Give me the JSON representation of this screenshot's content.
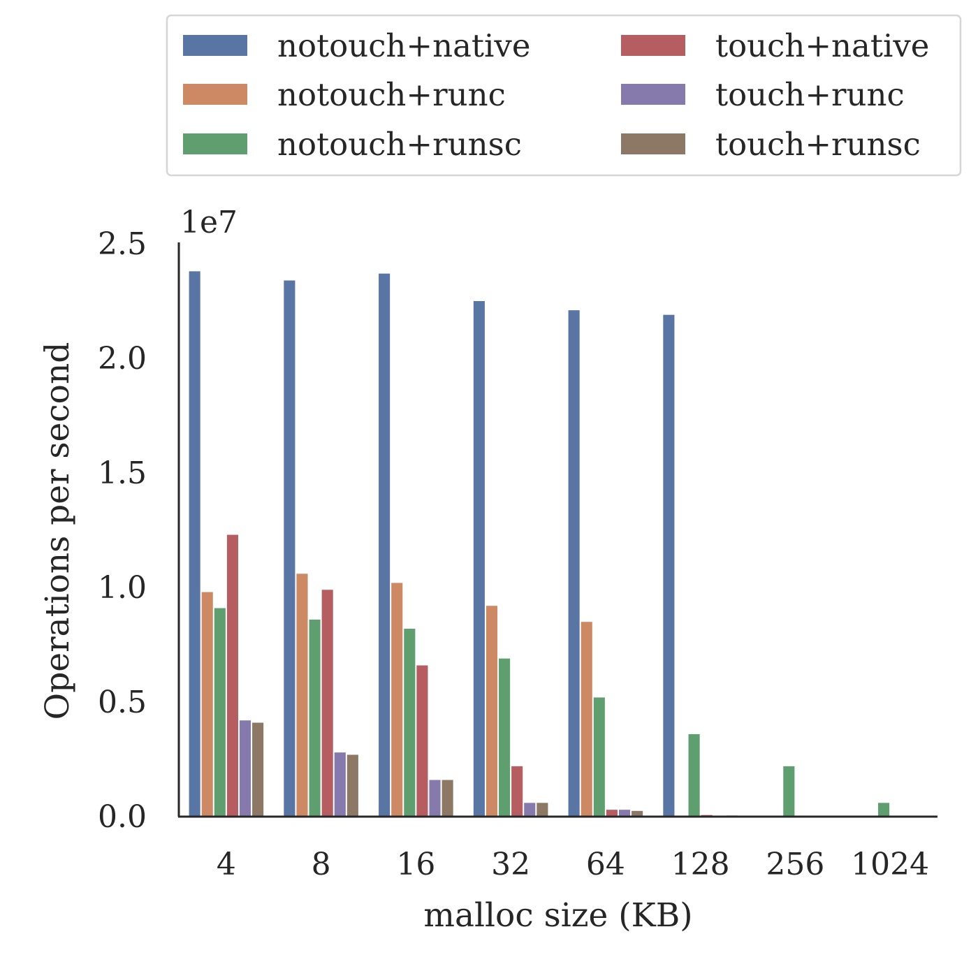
{
  "chart_data": {
    "type": "bar",
    "xlabel": "malloc size (KB)",
    "ylabel": "Operations per second",
    "y_offset_label": "1e7",
    "y_scale": 10000000,
    "ylim": [
      0,
      2.5
    ],
    "yticks": [
      "0.0",
      "0.5",
      "1.0",
      "1.5",
      "2.0",
      "2.5"
    ],
    "grid": false,
    "legend_position": "top",
    "categories": [
      "4",
      "8",
      "16",
      "32",
      "64",
      "128",
      "256",
      "1024"
    ],
    "series": [
      {
        "name": "notouch+native",
        "color": "#5875a4",
        "values": [
          2.38,
          2.34,
          2.37,
          2.25,
          2.21,
          2.19,
          0.0,
          0.0
        ]
      },
      {
        "name": "notouch+runc",
        "color": "#cc8963",
        "values": [
          0.98,
          1.06,
          1.02,
          0.92,
          0.85,
          0.0,
          0.0,
          0.0
        ]
      },
      {
        "name": "notouch+runsc",
        "color": "#5f9e6e",
        "values": [
          0.91,
          0.86,
          0.82,
          0.69,
          0.52,
          0.36,
          0.22,
          0.06
        ]
      },
      {
        "name": "touch+native",
        "color": "#b55d60",
        "values": [
          1.23,
          0.99,
          0.66,
          0.22,
          0.03,
          0.007,
          0.0,
          0.0
        ]
      },
      {
        "name": "touch+runc",
        "color": "#857aab",
        "values": [
          0.42,
          0.28,
          0.16,
          0.06,
          0.03,
          0.0,
          0.0,
          0.0
        ]
      },
      {
        "name": "touch+runsc",
        "color": "#8d7866",
        "values": [
          0.41,
          0.27,
          0.16,
          0.06,
          0.025,
          0.005,
          0.0,
          0.0
        ]
      }
    ]
  }
}
